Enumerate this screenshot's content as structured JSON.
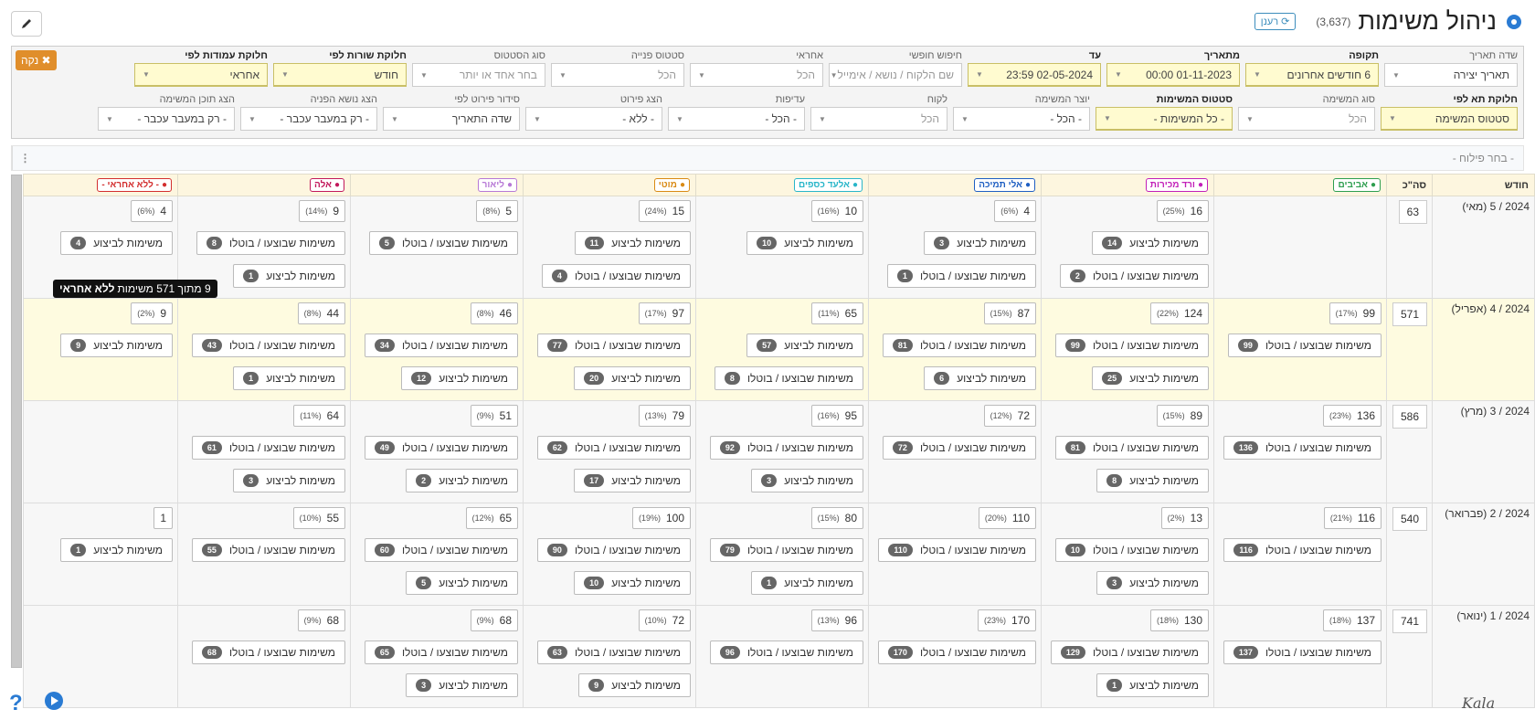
{
  "header": {
    "title": "ניהול משימות",
    "count": "(3,637)",
    "refresh": "רענן"
  },
  "filters_row1": [
    {
      "label": "שדה תאריך",
      "value": "תאריך יצירה"
    },
    {
      "label": "תקופה",
      "value": "6 חודשים אחרונים",
      "highlighted": true
    },
    {
      "label": "מתאריך",
      "value": "01-11-2023 00:00",
      "highlighted": true
    },
    {
      "label": "עד",
      "value": "02-05-2024 23:59",
      "highlighted": true
    },
    {
      "label": "חיפוש חופשי",
      "placeholder": "שם הלקוח / נושא / אימייל"
    },
    {
      "label": "אחראי",
      "placeholder": "הכל"
    },
    {
      "label": "סטטוס פנייה",
      "placeholder": "הכל"
    },
    {
      "label": "סוג הסטטוס",
      "placeholder": "בחר אחד או יותר"
    },
    {
      "label": "חלוקת שורות לפי",
      "value": "חודש",
      "highlighted": true
    },
    {
      "label": "חלוקת עמודות לפי",
      "value": "אחראי",
      "highlighted": true
    }
  ],
  "filters_row2": [
    {
      "label": "חלוקת תא לפי",
      "value": "סטטוס המשימה",
      "highlighted": true
    },
    {
      "label": "סוג המשימה",
      "placeholder": "הכל"
    },
    {
      "label": "סטטוס המשימות",
      "value": "- כל המשימות -",
      "highlighted": true
    },
    {
      "label": "יוצר המשימה",
      "value": "- הכל -"
    },
    {
      "label": "לקוח",
      "placeholder": "הכל"
    },
    {
      "label": "עדיפות",
      "value": "- הכל -"
    },
    {
      "label": "הצג פירוט",
      "value": "- ללא -"
    },
    {
      "label": "סידור פירוט לפי",
      "value": "שדה התאריך"
    },
    {
      "label": "הצג נושא הפניה",
      "value": "- רק במעבר עכבר -"
    },
    {
      "label": "הצג תוכן המשימה",
      "value": "- רק במעבר עכבר -"
    }
  ],
  "clear": "נקה",
  "segment_placeholder": "- בחר פילוח -",
  "table": {
    "month_header": "חודש",
    "total_header": "סה\"כ",
    "columns": [
      {
        "name": "אביבים",
        "color": "#2e9e4f"
      },
      {
        "name": "ורד מכירות",
        "color": "#c21fb8"
      },
      {
        "name": "אלי תמיכה",
        "color": "#1f5fc2"
      },
      {
        "name": "אלעד כספים",
        "color": "#29b6c9"
      },
      {
        "name": "מוטי",
        "color": "#d98a14"
      },
      {
        "name": "ליאור",
        "color": "#b779d6"
      },
      {
        "name": "אלה",
        "color": "#c2185b"
      },
      {
        "name": "- ללא אחראי -",
        "color": "#d32f2f"
      }
    ],
    "rows": [
      {
        "month": "2024 / 5 (מאי)",
        "total": 63,
        "cells": [
          null,
          {
            "count": 16,
            "pct": "(25%)",
            "items": [
              {
                "count": 14,
                "label": "משימות לביצוע"
              },
              {
                "count": 2,
                "label": "משימות שבוצעו / בוטלו"
              }
            ]
          },
          {
            "count": 4,
            "pct": "(6%)",
            "items": [
              {
                "count": 3,
                "label": "משימות לביצוע"
              },
              {
                "count": 1,
                "label": "משימות שבוצעו / בוטלו"
              }
            ]
          },
          {
            "count": 10,
            "pct": "(16%)",
            "items": [
              {
                "count": 10,
                "label": "משימות לביצוע"
              }
            ]
          },
          {
            "count": 15,
            "pct": "(24%)",
            "items": [
              {
                "count": 11,
                "label": "משימות לביצוע"
              },
              {
                "count": 4,
                "label": "משימות שבוצעו / בוטלו"
              }
            ]
          },
          {
            "count": 5,
            "pct": "(8%)",
            "items": [
              {
                "count": 5,
                "label": "משימות שבוצעו / בוטלו"
              }
            ]
          },
          {
            "count": 9,
            "pct": "(14%)",
            "items": [
              {
                "count": 8,
                "label": "משימות שבוצעו / בוטלו"
              },
              {
                "count": 1,
                "label": "משימות לביצוע"
              }
            ]
          },
          {
            "count": 4,
            "pct": "(6%)",
            "items": [
              {
                "count": 4,
                "label": "משימות לביצוע"
              }
            ]
          }
        ]
      },
      {
        "month": "2024 / 4 (אפריל)",
        "total": 571,
        "cells": [
          {
            "count": 99,
            "pct": "(17%)",
            "items": [
              {
                "count": 99,
                "label": "משימות שבוצעו / בוטלו"
              }
            ]
          },
          {
            "count": 124,
            "pct": "(22%)",
            "items": [
              {
                "count": 99,
                "label": "משימות שבוצעו / בוטלו"
              },
              {
                "count": 25,
                "label": "משימות לביצוע"
              }
            ]
          },
          {
            "count": 87,
            "pct": "(15%)",
            "items": [
              {
                "count": 81,
                "label": "משימות שבוצעו / בוטלו"
              },
              {
                "count": 6,
                "label": "משימות לביצוע"
              }
            ]
          },
          {
            "count": 65,
            "pct": "(11%)",
            "items": [
              {
                "count": 57,
                "label": "משימות לביצוע"
              },
              {
                "count": 8,
                "label": "משימות שבוצעו / בוטלו"
              }
            ]
          },
          {
            "count": 97,
            "pct": "(17%)",
            "items": [
              {
                "count": 77,
                "label": "משימות שבוצעו / בוטלו"
              },
              {
                "count": 20,
                "label": "משימות לביצוע"
              }
            ]
          },
          {
            "count": 46,
            "pct": "(8%)",
            "items": [
              {
                "count": 34,
                "label": "משימות שבוצעו / בוטלו"
              },
              {
                "count": 12,
                "label": "משימות לביצוע"
              }
            ]
          },
          {
            "count": 44,
            "pct": "(8%)",
            "items": [
              {
                "count": 43,
                "label": "משימות שבוצעו / בוטלו"
              },
              {
                "count": 1,
                "label": "משימות לביצוע"
              }
            ]
          },
          {
            "count": 9,
            "pct": "(2%)",
            "items": [
              {
                "count": 9,
                "label": "משימות לביצוע"
              }
            ]
          }
        ]
      },
      {
        "month": "2024 / 3 (מרץ)",
        "total": 586,
        "cells": [
          {
            "count": 136,
            "pct": "(23%)",
            "items": [
              {
                "count": 136,
                "label": "משימות שבוצעו / בוטלו"
              }
            ]
          },
          {
            "count": 89,
            "pct": "(15%)",
            "items": [
              {
                "count": 81,
                "label": "משימות שבוצעו / בוטלו"
              },
              {
                "count": 8,
                "label": "משימות לביצוע"
              }
            ]
          },
          {
            "count": 72,
            "pct": "(12%)",
            "items": [
              {
                "count": 72,
                "label": "משימות שבוצעו / בוטלו"
              }
            ]
          },
          {
            "count": 95,
            "pct": "(16%)",
            "items": [
              {
                "count": 92,
                "label": "משימות שבוצעו / בוטלו"
              },
              {
                "count": 3,
                "label": "משימות לביצוע"
              }
            ]
          },
          {
            "count": 79,
            "pct": "(13%)",
            "items": [
              {
                "count": 62,
                "label": "משימות שבוצעו / בוטלו"
              },
              {
                "count": 17,
                "label": "משימות לביצוע"
              }
            ]
          },
          {
            "count": 51,
            "pct": "(9%)",
            "items": [
              {
                "count": 49,
                "label": "משימות שבוצעו / בוטלו"
              },
              {
                "count": 2,
                "label": "משימות לביצוע"
              }
            ]
          },
          {
            "count": 64,
            "pct": "(11%)",
            "items": [
              {
                "count": 61,
                "label": "משימות שבוצעו / בוטלו"
              },
              {
                "count": 3,
                "label": "משימות לביצוע"
              }
            ]
          },
          null
        ]
      },
      {
        "month": "2024 / 2 (פברואר)",
        "total": 540,
        "cells": [
          {
            "count": 116,
            "pct": "(21%)",
            "items": [
              {
                "count": 116,
                "label": "משימות שבוצעו / בוטלו"
              }
            ]
          },
          {
            "count": 13,
            "pct": "(2%)",
            "items": [
              {
                "count": 10,
                "label": "משימות שבוצעו / בוטלו"
              },
              {
                "count": 3,
                "label": "משימות לביצוע"
              }
            ]
          },
          {
            "count": 110,
            "pct": "(20%)",
            "items": [
              {
                "count": 110,
                "label": "משימות שבוצעו / בוטלו"
              }
            ]
          },
          {
            "count": 80,
            "pct": "(15%)",
            "items": [
              {
                "count": 79,
                "label": "משימות שבוצעו / בוטלו"
              },
              {
                "count": 1,
                "label": "משימות לביצוע"
              }
            ]
          },
          {
            "count": 100,
            "pct": "(19%)",
            "items": [
              {
                "count": 90,
                "label": "משימות שבוצעו / בוטלו"
              },
              {
                "count": 10,
                "label": "משימות לביצוע"
              }
            ]
          },
          {
            "count": 65,
            "pct": "(12%)",
            "items": [
              {
                "count": 60,
                "label": "משימות שבוצעו / בוטלו"
              },
              {
                "count": 5,
                "label": "משימות לביצוע"
              }
            ]
          },
          {
            "count": 55,
            "pct": "(10%)",
            "items": [
              {
                "count": 55,
                "label": "משימות שבוצעו / בוטלו"
              }
            ]
          },
          {
            "count": 1,
            "items": [
              {
                "count": 1,
                "label": "משימות לביצוע"
              }
            ]
          }
        ]
      },
      {
        "month": "2024 / 1 (ינואר)",
        "total": 741,
        "cells": [
          {
            "count": 137,
            "pct": "(18%)",
            "items": [
              {
                "count": 137,
                "label": "משימות שבוצעו / בוטלו"
              }
            ]
          },
          {
            "count": 130,
            "pct": "(18%)",
            "items": [
              {
                "count": 129,
                "label": "משימות שבוצעו / בוטלו"
              },
              {
                "count": 1,
                "label": "משימות לביצוע"
              }
            ]
          },
          {
            "count": 170,
            "pct": "(23%)",
            "items": [
              {
                "count": 170,
                "label": "משימות שבוצעו / בוטלו"
              }
            ]
          },
          {
            "count": 96,
            "pct": "(13%)",
            "items": [
              {
                "count": 96,
                "label": "משימות שבוצעו / בוטלו"
              }
            ]
          },
          {
            "count": 72,
            "pct": "(10%)",
            "items": [
              {
                "count": 63,
                "label": "משימות שבוצעו / בוטלו"
              },
              {
                "count": 9,
                "label": "משימות לביצוע"
              }
            ]
          },
          {
            "count": 68,
            "pct": "(9%)",
            "items": [
              {
                "count": 65,
                "label": "משימות שבוצעו / בוטלו"
              },
              {
                "count": 3,
                "label": "משימות לביצוע"
              }
            ]
          },
          {
            "count": 68,
            "pct": "(9%)",
            "items": [
              {
                "count": 68,
                "label": "משימות שבוצעו / בוטלו"
              }
            ]
          },
          null
        ]
      }
    ]
  },
  "tooltip": {
    "text": "9 מתוך 571 משימות",
    "bold": "ללא אחראי"
  },
  "brand": "Kala"
}
